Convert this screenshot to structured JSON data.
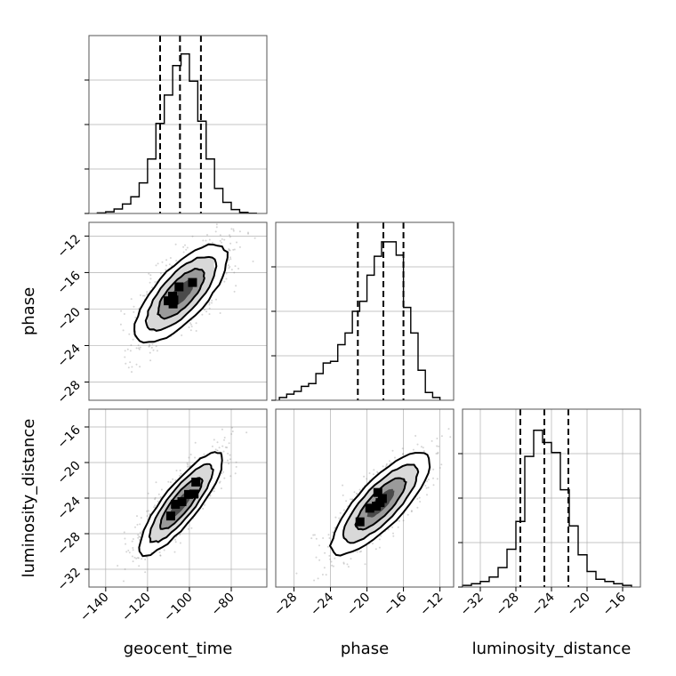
{
  "chart_data": [
    {
      "type": "histogram",
      "panel": "geocent_time",
      "xlim": [
        -148,
        -63
      ],
      "quantile_lines": [
        -114,
        -104.5,
        -94.5
      ],
      "bins": [
        {
          "x0": -144,
          "x1": -140,
          "count": 0.01
        },
        {
          "x0": -140,
          "x1": -136,
          "count": 0.03
        },
        {
          "x0": -136,
          "x1": -132,
          "count": 0.08
        },
        {
          "x0": -132,
          "x1": -128,
          "count": 0.17
        },
        {
          "x0": -128,
          "x1": -124,
          "count": 0.3
        },
        {
          "x0": -124,
          "x1": -120,
          "count": 0.55
        },
        {
          "x0": -120,
          "x1": -116,
          "count": 0.98
        },
        {
          "x0": -116,
          "x1": -112,
          "count": 1.62
        },
        {
          "x0": -112,
          "x1": -108,
          "count": 2.13
        },
        {
          "x0": -108,
          "x1": -104,
          "count": 2.66
        },
        {
          "x0": -104,
          "x1": -100,
          "count": 2.87
        },
        {
          "x0": -100,
          "x1": -96,
          "count": 2.38
        },
        {
          "x0": -96,
          "x1": -92,
          "count": 1.66
        },
        {
          "x0": -92,
          "x1": -88,
          "count": 0.98
        },
        {
          "x0": -88,
          "x1": -84,
          "count": 0.45
        },
        {
          "x0": -84,
          "x1": -80,
          "count": 0.2
        },
        {
          "x0": -80,
          "x1": -76,
          "count": 0.07
        },
        {
          "x0": -76,
          "x1": -72,
          "count": 0.02
        },
        {
          "x0": -72,
          "x1": -68,
          "count": 0.005
        }
      ],
      "ylim": [
        0,
        3.2
      ],
      "xticks": [],
      "yticks": [
        0,
        0.8,
        1.6,
        2.4
      ]
    },
    {
      "type": "scatter",
      "panel": "phase vs geocent_time",
      "x": "geocent_time",
      "y": "phase",
      "xlim": [
        -148,
        -63
      ],
      "ylim": [
        -30,
        -10.5
      ],
      "center": [
        -104,
        -18.3
      ],
      "spread": [
        11,
        2.7
      ],
      "correlation": 0.72,
      "xticks": [],
      "yticks": [
        -28,
        -24,
        -20,
        -16,
        -12
      ]
    },
    {
      "type": "histogram",
      "panel": "phase",
      "xlim": [
        -30,
        -10.5
      ],
      "quantile_lines": [
        -21,
        -18.2,
        -16
      ],
      "bins": [
        {
          "x0": -29.6,
          "x1": -28.8,
          "count": 0.05
        },
        {
          "x0": -28.8,
          "x1": -28.0,
          "count": 0.11
        },
        {
          "x0": -28.0,
          "x1": -27.2,
          "count": 0.16
        },
        {
          "x0": -27.2,
          "x1": -26.4,
          "count": 0.25
        },
        {
          "x0": -26.4,
          "x1": -25.6,
          "count": 0.3
        },
        {
          "x0": -25.6,
          "x1": -24.8,
          "count": 0.48
        },
        {
          "x0": -24.8,
          "x1": -24.0,
          "count": 0.67
        },
        {
          "x0": -24.0,
          "x1": -23.2,
          "count": 0.7
        },
        {
          "x0": -23.2,
          "x1": -22.4,
          "count": 1.0
        },
        {
          "x0": -22.4,
          "x1": -21.6,
          "count": 1.21
        },
        {
          "x0": -21.6,
          "x1": -20.8,
          "count": 1.6
        },
        {
          "x0": -20.8,
          "x1": -20.0,
          "count": 1.78
        },
        {
          "x0": -20.0,
          "x1": -19.2,
          "count": 2.25
        },
        {
          "x0": -19.2,
          "x1": -18.4,
          "count": 2.59
        },
        {
          "x0": -18.4,
          "x1": -17.6,
          "count": 2.85
        },
        {
          "x0": -17.6,
          "x1": -16.8,
          "count": 2.85
        },
        {
          "x0": -16.8,
          "x1": -16.0,
          "count": 2.61
        },
        {
          "x0": -16.0,
          "x1": -15.2,
          "count": 1.67
        },
        {
          "x0": -15.2,
          "x1": -14.4,
          "count": 1.21
        },
        {
          "x0": -14.4,
          "x1": -13.6,
          "count": 0.54
        },
        {
          "x0": -13.6,
          "x1": -12.8,
          "count": 0.14
        },
        {
          "x0": -12.8,
          "x1": -12.0,
          "count": 0.05
        }
      ],
      "ylim": [
        0,
        3.2
      ],
      "xticks": [],
      "yticks": [
        0,
        0.8,
        1.6,
        2.4
      ]
    },
    {
      "type": "scatter",
      "panel": "luminosity_distance vs geocent_time",
      "x": "geocent_time",
      "y": "luminosity_distance",
      "xlim": [
        -148,
        -63
      ],
      "ylim": [
        -34,
        -14
      ],
      "center": [
        -104,
        -24.6
      ],
      "spread": [
        10,
        2.9
      ],
      "correlation": 0.85,
      "xticks": [
        -140,
        -120,
        -100,
        -80
      ],
      "xticklabels": [
        "−140",
        "−120",
        "−100",
        "−80"
      ],
      "yticks": [
        -32,
        -28,
        -24,
        -20,
        -16
      ],
      "yticklabels": [
        "−32",
        "−28",
        "−24",
        "−20",
        "−16"
      ],
      "xlabel": "geocent_time",
      "ylabel": "luminosity_distance"
    },
    {
      "type": "scatter",
      "panel": "luminosity_distance vs phase",
      "x": "phase",
      "y": "luminosity_distance",
      "xlim": [
        -30,
        -10.5
      ],
      "ylim": [
        -34,
        -14
      ],
      "center": [
        -18.5,
        -24.6
      ],
      "spread": [
        2.7,
        2.9
      ],
      "correlation": 0.8,
      "xticks": [
        -28,
        -24,
        -20,
        -16,
        -12
      ],
      "xticklabels": [
        "−28",
        "−24",
        "−20",
        "−16",
        "−12"
      ],
      "xlabel": "phase"
    },
    {
      "type": "histogram",
      "panel": "luminosity_distance",
      "xlim": [
        -34,
        -14
      ],
      "quantile_lines": [
        -27.5,
        -24.8,
        -22.1
      ],
      "bins": [
        {
          "x0": -34,
          "x1": -33,
          "count": 0.03
        },
        {
          "x0": -33,
          "x1": -32,
          "count": 0.06
        },
        {
          "x0": -32,
          "x1": -31,
          "count": 0.1
        },
        {
          "x0": -31,
          "x1": -30,
          "count": 0.18
        },
        {
          "x0": -30,
          "x1": -29,
          "count": 0.35
        },
        {
          "x0": -29,
          "x1": -28,
          "count": 0.68
        },
        {
          "x0": -28,
          "x1": -27,
          "count": 1.18
        },
        {
          "x0": -27,
          "x1": -26,
          "count": 2.35
        },
        {
          "x0": -26,
          "x1": -25,
          "count": 2.82
        },
        {
          "x0": -25,
          "x1": -24,
          "count": 2.6
        },
        {
          "x0": -24,
          "x1": -23,
          "count": 2.42
        },
        {
          "x0": -23,
          "x1": -22,
          "count": 1.75
        },
        {
          "x0": -22,
          "x1": -21,
          "count": 1.1
        },
        {
          "x0": -21,
          "x1": -20,
          "count": 0.58
        },
        {
          "x0": -20,
          "x1": -19,
          "count": 0.28
        },
        {
          "x0": -19,
          "x1": -18,
          "count": 0.14
        },
        {
          "x0": -18,
          "x1": -17,
          "count": 0.1
        },
        {
          "x0": -17,
          "x1": -16,
          "count": 0.06
        },
        {
          "x0": -16,
          "x1": -15,
          "count": 0.03
        }
      ],
      "ylim": [
        0,
        3.2
      ],
      "xticks": [
        -32,
        -28,
        -24,
        -20,
        -16
      ],
      "xticklabels": [
        "−32",
        "−28",
        "−24",
        "−20",
        "−16"
      ],
      "yticks": [
        0,
        0.8,
        1.6,
        2.4
      ],
      "xlabel": "luminosity_distance"
    }
  ],
  "phase_row_yticklabels": [
    "−28",
    "−24",
    "−20",
    "−16",
    "−12"
  ],
  "phase_row_ylabel": "phase",
  "colors": {
    "frame": "#555555",
    "grid": "#b0b0b0",
    "line": "#000000",
    "scatter_point": "#888888",
    "density_scale": [
      "#ffffff",
      "#d8d8d8",
      "#9a9a9a",
      "#4a4a4a",
      "#000000"
    ]
  }
}
